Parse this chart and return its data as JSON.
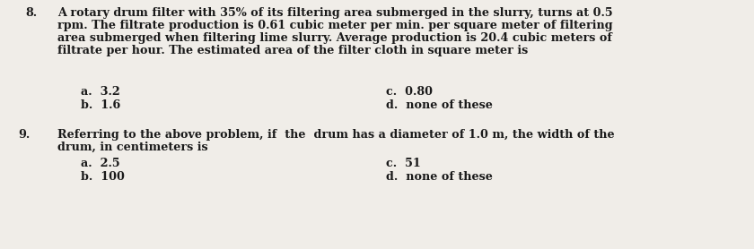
{
  "background_color": "#f0ede8",
  "text_color": "#1a1a1a",
  "font_family": "DejaVu Serif",
  "q8_number": "8.",
  "q8_line1": "A rotary drum filter with 35% of its filtering area submerged in the slurry, turns at 0.5",
  "q8_line2": "rpm. The filtrate production is 0.61 cubic meter per min. per square meter of filtering",
  "q8_line3": "area submerged when filtering lime slurry. Average production is 20.4 cubic meters of",
  "q8_line4": "filtrate per hour. The estimated area of the filter cloth in square meter is",
  "q8_a": "a.  3.2",
  "q8_b": "b.  1.6",
  "q8_c": "c.  0.80",
  "q8_d": "d.  none of these",
  "q9_number": "9.",
  "q9_line1": "Referring to the above problem, if  the  drum has a diameter of 1.0 m, the width of the",
  "q9_line2": "drum, in centimeters is",
  "q9_a": "a.  2.5",
  "q9_b": "b.  100",
  "q9_c": "c.  51",
  "q9_d": "d.  none of these",
  "font_size": 9.2,
  "fig_width": 8.4,
  "fig_height": 2.78,
  "dpi": 100
}
